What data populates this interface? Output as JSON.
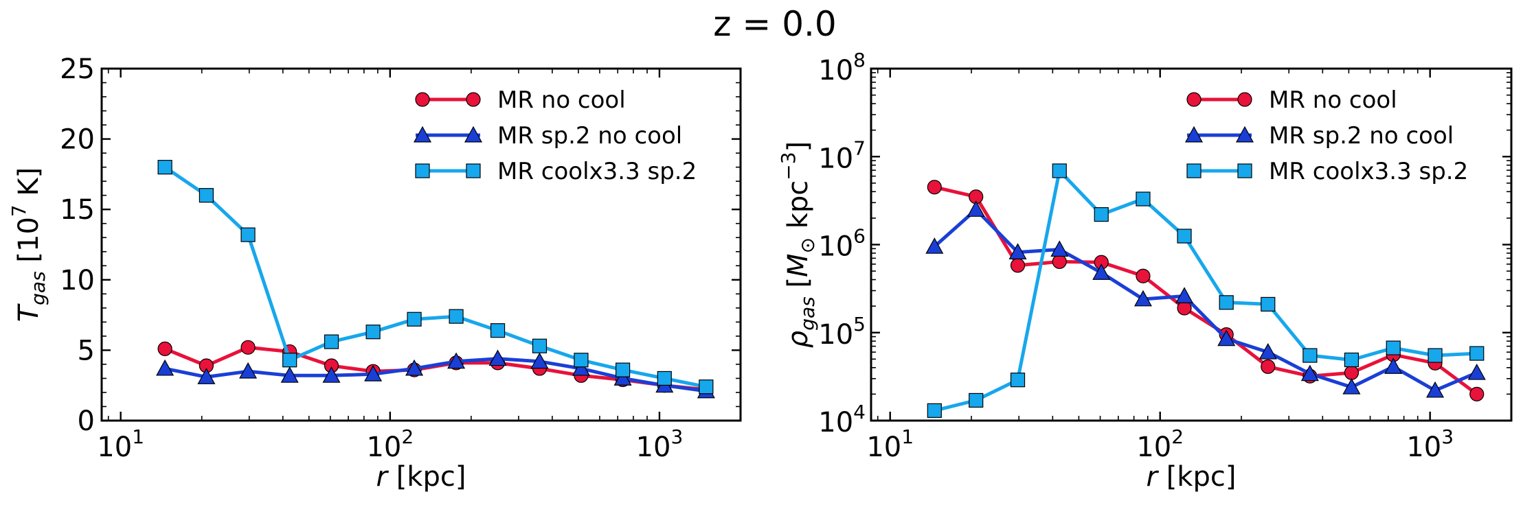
{
  "figure": {
    "suptitle": "z = 0.0"
  },
  "chart_data": [
    {
      "type": "line",
      "panel": "left",
      "xscale": "log",
      "yscale": "linear",
      "xlim": [
        8.5,
        2000
      ],
      "ylim": [
        0,
        25
      ],
      "xlabel": "r [kpc]",
      "ylabel": {
        "base": "T",
        "sub": "gas",
        "open": " [10",
        "sup": "7",
        "close": " K]"
      },
      "xticks": [
        {
          "value": 10,
          "base": "10",
          "exp": "1"
        },
        {
          "value": 100,
          "base": "10",
          "exp": "2"
        },
        {
          "value": 1000,
          "base": "10",
          "exp": "3"
        }
      ],
      "yticks": [
        {
          "value": 0,
          "label": "0"
        },
        {
          "value": 5,
          "label": "5"
        },
        {
          "value": 10,
          "label": "10"
        },
        {
          "value": 15,
          "label": "15"
        },
        {
          "value": 20,
          "label": "20"
        },
        {
          "value": 25,
          "label": "25"
        }
      ],
      "legend_position": "upper-right",
      "x": [
        14.6,
        20.8,
        29.7,
        42.4,
        60.6,
        86.5,
        123,
        176,
        251,
        359,
        512,
        731,
        1044,
        1490
      ],
      "series": [
        {
          "name": "MR no cool",
          "marker": "circle",
          "color": "#e8123a",
          "values": [
            5.1,
            3.9,
            5.2,
            4.9,
            3.9,
            3.5,
            3.6,
            4.1,
            4.1,
            3.7,
            3.2,
            2.9,
            2.5,
            2.2
          ]
        },
        {
          "name": "MR sp.2 no cool",
          "marker": "triangle",
          "color": "#1a3fd6",
          "values": [
            3.7,
            3.1,
            3.5,
            3.2,
            3.2,
            3.3,
            3.7,
            4.2,
            4.4,
            4.2,
            3.7,
            3.0,
            2.5,
            2.1
          ]
        },
        {
          "name": "MR coolx3.3 sp.2",
          "marker": "square",
          "color": "#17a7ec",
          "values": [
            18.0,
            16.0,
            13.2,
            4.3,
            5.6,
            6.3,
            7.2,
            7.4,
            6.4,
            5.3,
            4.3,
            3.6,
            3.0,
            2.4
          ]
        }
      ]
    },
    {
      "type": "line",
      "panel": "right",
      "xscale": "log",
      "yscale": "log",
      "xlim": [
        8.5,
        2000
      ],
      "ylim": [
        10000,
        100000000
      ],
      "xlabel": "r [kpc]",
      "ylabel": {
        "base": "ρ",
        "sub": "gas",
        "open": " [M",
        "sub2": "⊙",
        "mid": " kpc",
        "sup": "−3",
        "close": "]"
      },
      "xticks": [
        {
          "value": 10,
          "base": "10",
          "exp": "1"
        },
        {
          "value": 100,
          "base": "10",
          "exp": "2"
        },
        {
          "value": 1000,
          "base": "10",
          "exp": "3"
        }
      ],
      "yticks": [
        {
          "value": 10000,
          "base": "10",
          "exp": "4"
        },
        {
          "value": 100000,
          "base": "10",
          "exp": "5"
        },
        {
          "value": 1000000,
          "base": "10",
          "exp": "6"
        },
        {
          "value": 10000000,
          "base": "10",
          "exp": "7"
        },
        {
          "value": 100000000,
          "base": "10",
          "exp": "8"
        }
      ],
      "legend_position": "upper-right",
      "x": [
        14.6,
        20.8,
        29.7,
        42.4,
        60.6,
        86.5,
        123,
        176,
        251,
        359,
        512,
        731,
        1044,
        1490
      ],
      "series": [
        {
          "name": "MR no cool",
          "marker": "circle",
          "color": "#e8123a",
          "values": [
            4500000,
            3500000,
            580000,
            640000,
            630000,
            440000,
            190000,
            95000,
            41000,
            32000,
            35000,
            56000,
            45000,
            20000
          ]
        },
        {
          "name": "MR sp.2 no cool",
          "marker": "triangle",
          "color": "#1a3fd6",
          "values": [
            950000,
            2500000,
            820000,
            880000,
            480000,
            240000,
            260000,
            85000,
            60000,
            34000,
            24000,
            41000,
            22000,
            35000
          ]
        },
        {
          "name": "MR coolx3.3 sp.2",
          "marker": "square",
          "color": "#17a7ec",
          "values": [
            13000,
            17000,
            29000,
            6900000,
            2200000,
            3300000,
            1250000,
            220000,
            210000,
            55000,
            49000,
            67000,
            55000,
            58000
          ]
        }
      ]
    }
  ]
}
